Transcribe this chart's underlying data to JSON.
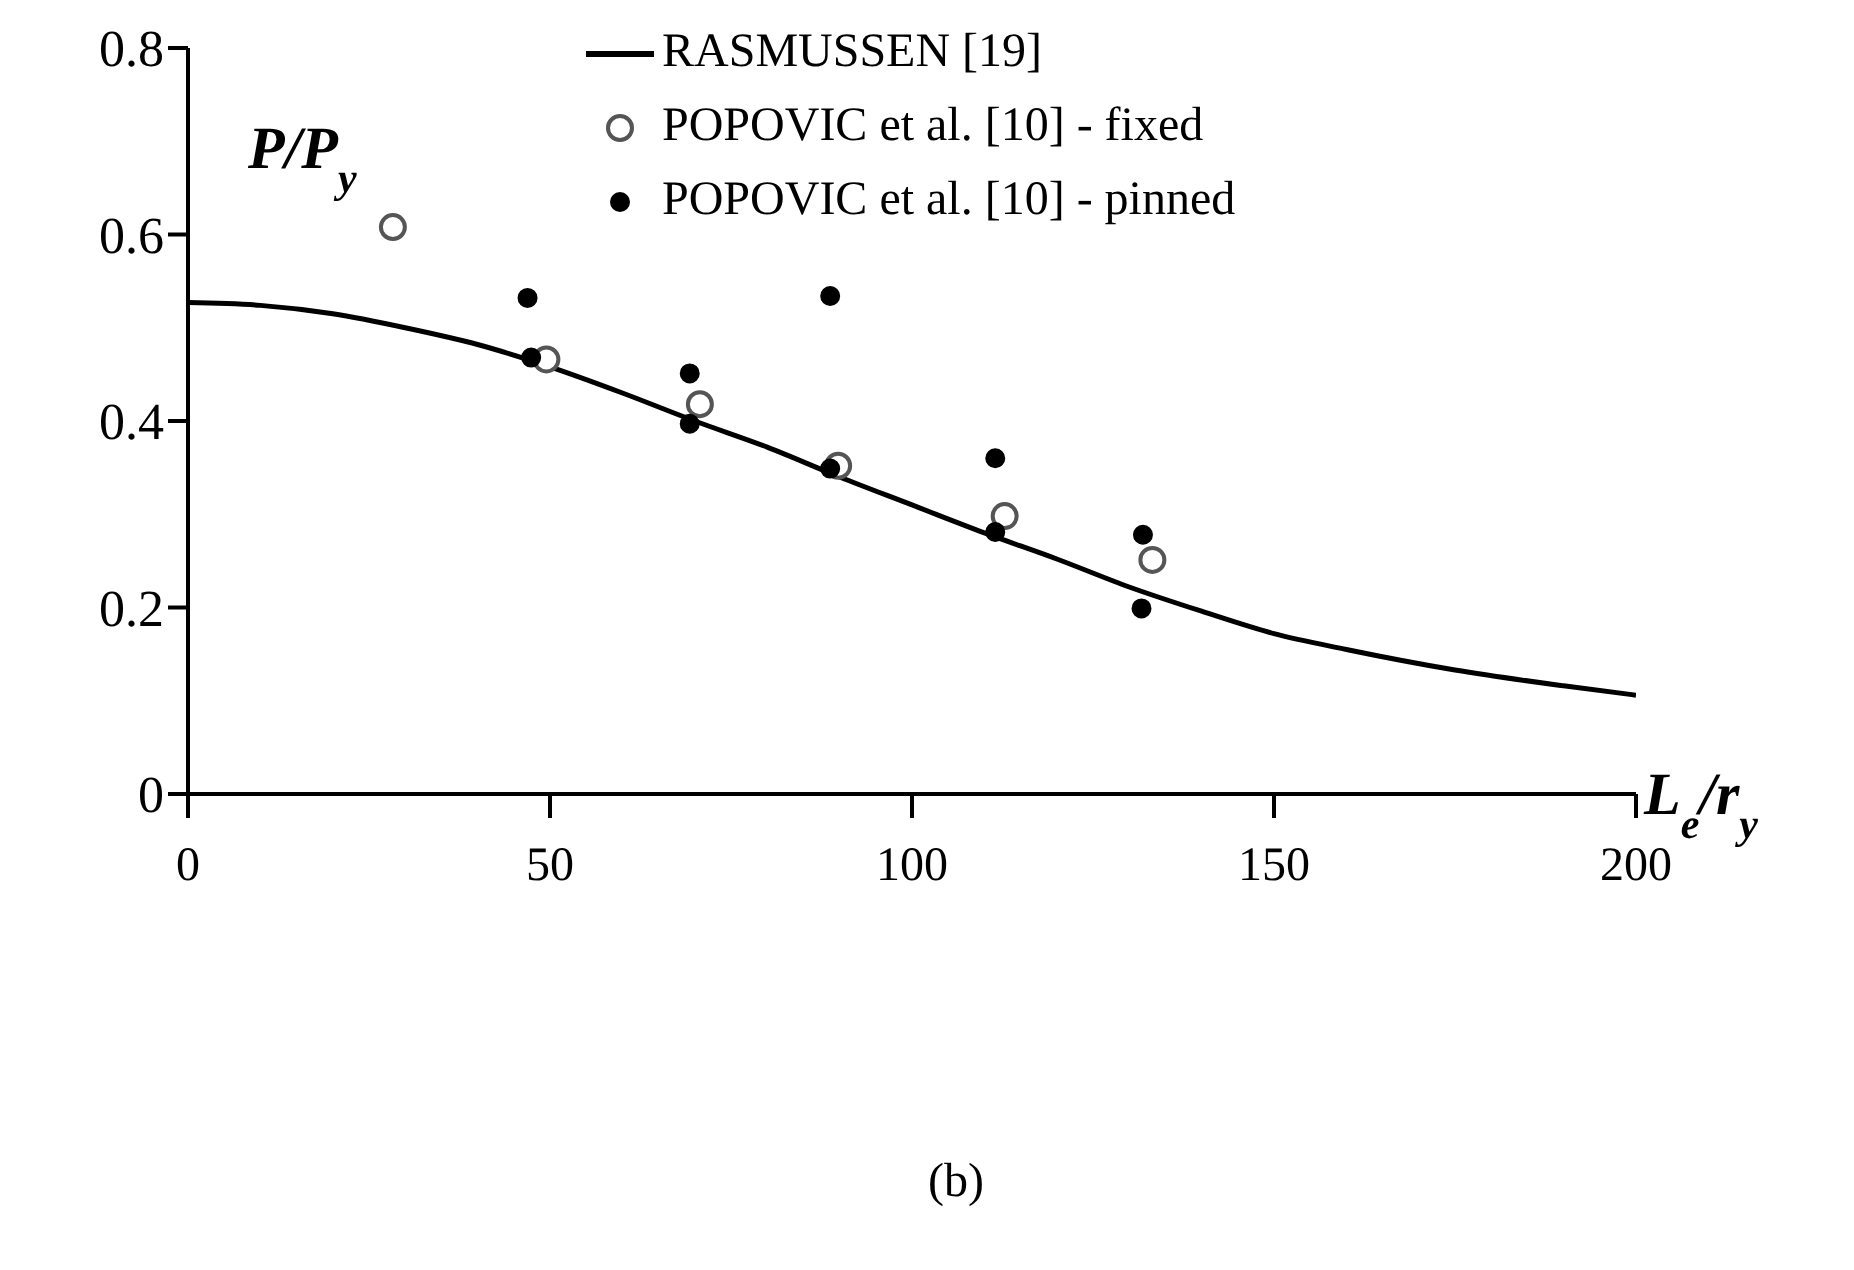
{
  "chart_data": {
    "type": "scatter",
    "xlabel": "L$_{e}$/r$_{y}$",
    "ylabel": "P/P$_{y}$",
    "xlim": [
      0,
      200
    ],
    "xticks": [
      0,
      50,
      100,
      150,
      200
    ],
    "ylim": [
      0,
      0.8
    ],
    "yticks": [
      0,
      0.2,
      0.4,
      0.6,
      0.8
    ],
    "grid": false,
    "legend": "top right",
    "annotations": [
      "(b)"
    ],
    "series": [
      {
        "name": "RASMUSSEN [19]",
        "type": "line",
        "color": "#000000",
        "marker": "none",
        "line_style": "solid",
        "x": [
          0,
          10,
          20,
          30,
          40,
          50,
          60,
          70,
          80,
          90,
          100,
          110,
          120,
          130,
          140,
          150,
          160,
          175,
          190,
          200
        ],
        "values": [
          0.527,
          0.524,
          0.515,
          0.5,
          0.482,
          0.458,
          0.43,
          0.4,
          0.372,
          0.34,
          0.31,
          0.28,
          0.252,
          0.222,
          0.196,
          0.172,
          0.155,
          0.133,
          0.116,
          0.106
        ]
      },
      {
        "name": "POPOVIC et al. [10] - fixed",
        "color": "#555555",
        "marker": "open circle",
        "x": [
          28.3,
          49.5,
          70.7,
          89.8,
          112.8,
          133.2
        ],
        "values": [
          0.608,
          0.466,
          0.418,
          0.352,
          0.298,
          0.251
        ]
      },
      {
        "name": "POPOVIC et al. [10] - pinned",
        "color": "#000000",
        "marker": "circle",
        "x": [
          46.9,
          47.4,
          69.3,
          69.3,
          88.7,
          88.7,
          111.5,
          111.5,
          131.9,
          131.7
        ],
        "values": [
          0.532,
          0.468,
          0.451,
          0.397,
          0.534,
          0.349,
          0.36,
          0.281,
          0.278,
          0.199
        ]
      }
    ]
  }
}
